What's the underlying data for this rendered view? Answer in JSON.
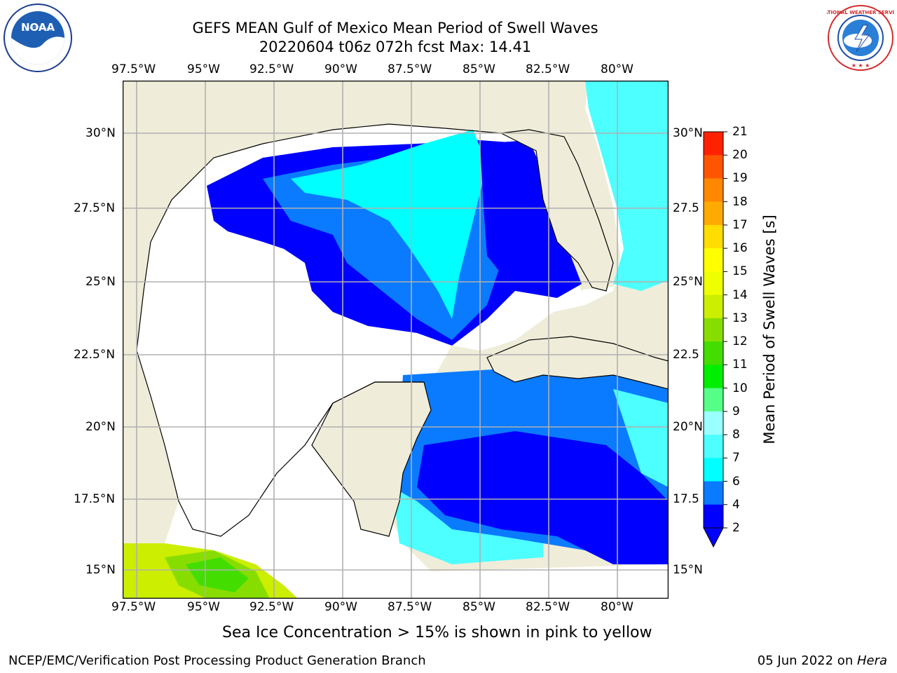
{
  "header": {
    "title_line1": "GEFS MEAN Gulf of Mexico Mean Period of Swell Waves",
    "title_line2": "20220604 t06z 072h fcst   Max: 14.41"
  },
  "map": {
    "region": "Gulf of Mexico",
    "lon_labels": [
      "97.5°W",
      "95°W",
      "92.5°W",
      "90°W",
      "87.5°W",
      "85°W",
      "82.5°W",
      "80°W"
    ],
    "lat_labels_left": [
      "30°N",
      "27.5°N",
      "25°N",
      "22.5°N",
      "20°N",
      "17.5°N",
      "15°N"
    ],
    "lat_labels_right": [
      "30°N",
      "27.5",
      "25°N",
      "22.5",
      "20°N",
      "17.5",
      "15°N"
    ],
    "land_color": "#efedd9",
    "grid_color": "#b0b0b0"
  },
  "colorbar": {
    "title": "Mean Period of Swell Waves [s]",
    "tick_labels": [
      "2",
      "4",
      "6",
      "7",
      "8",
      "9",
      "10",
      "11",
      "12",
      "13",
      "14",
      "15",
      "16",
      "17",
      "18",
      "19",
      "20",
      "21"
    ],
    "colors": [
      "#0000ff",
      "#0a7bff",
      "#00ffff",
      "#4dffff",
      "#99ffff",
      "#55ff88",
      "#00ee00",
      "#44dd00",
      "#88dd00",
      "#ccee00",
      "#eeff00",
      "#ffff00",
      "#ffdd00",
      "#ffaa00",
      "#ff8800",
      "#ff5500",
      "#ff2200",
      "#ff0000"
    ],
    "extend": "min"
  },
  "caption": "Sea Ice Concentration > 15% is shown in pink to yellow",
  "footer": {
    "left": "NCEP/EMC/Verification Post Processing Product Generation Branch",
    "right_date": "05 Jun 2022 on ",
    "right_host": "Hera"
  },
  "logos": {
    "noaa": "NOAA",
    "nws": "NATIONAL WEATHER SERVICE"
  }
}
